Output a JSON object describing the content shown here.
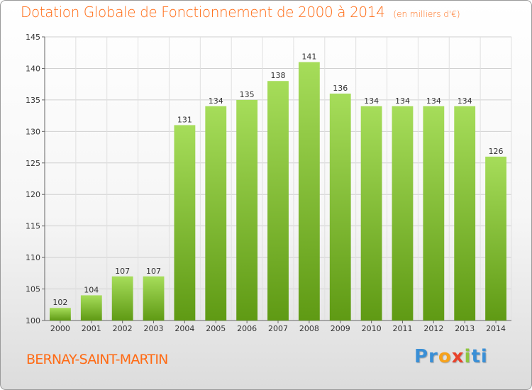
{
  "header": {
    "title": "Dotation Globale de Fonctionnement de 2000 à 2014",
    "subtitle": "(en milliers d'€)"
  },
  "footer": {
    "commune": "BERNAY-SAINT-MARTIN",
    "logo": [
      "Pr",
      "o",
      "x",
      "i",
      "ti"
    ]
  },
  "colors": {
    "title": "#ff6a13",
    "bar_light": "#a6dd5a",
    "bar_dark": "#5f9a14",
    "grid": "#d0d0d0"
  },
  "chart_data": {
    "type": "bar",
    "title": "Dotation Globale de Fonctionnement de 2000 à 2014",
    "subtitle": "(en milliers d'€)",
    "xlabel": "",
    "ylabel": "",
    "categories": [
      "2000",
      "2001",
      "2002",
      "2003",
      "2004",
      "2005",
      "2006",
      "2007",
      "2008",
      "2009",
      "2010",
      "2011",
      "2012",
      "2013",
      "2014"
    ],
    "values": [
      102,
      104,
      107,
      107,
      131,
      134,
      135,
      138,
      141,
      136,
      134,
      134,
      134,
      134,
      126
    ],
    "ylim": [
      100,
      145
    ],
    "yticks": [
      100,
      105,
      110,
      115,
      120,
      125,
      130,
      135,
      140,
      145
    ],
    "grid": true,
    "data_labels": true,
    "legend": "none"
  }
}
